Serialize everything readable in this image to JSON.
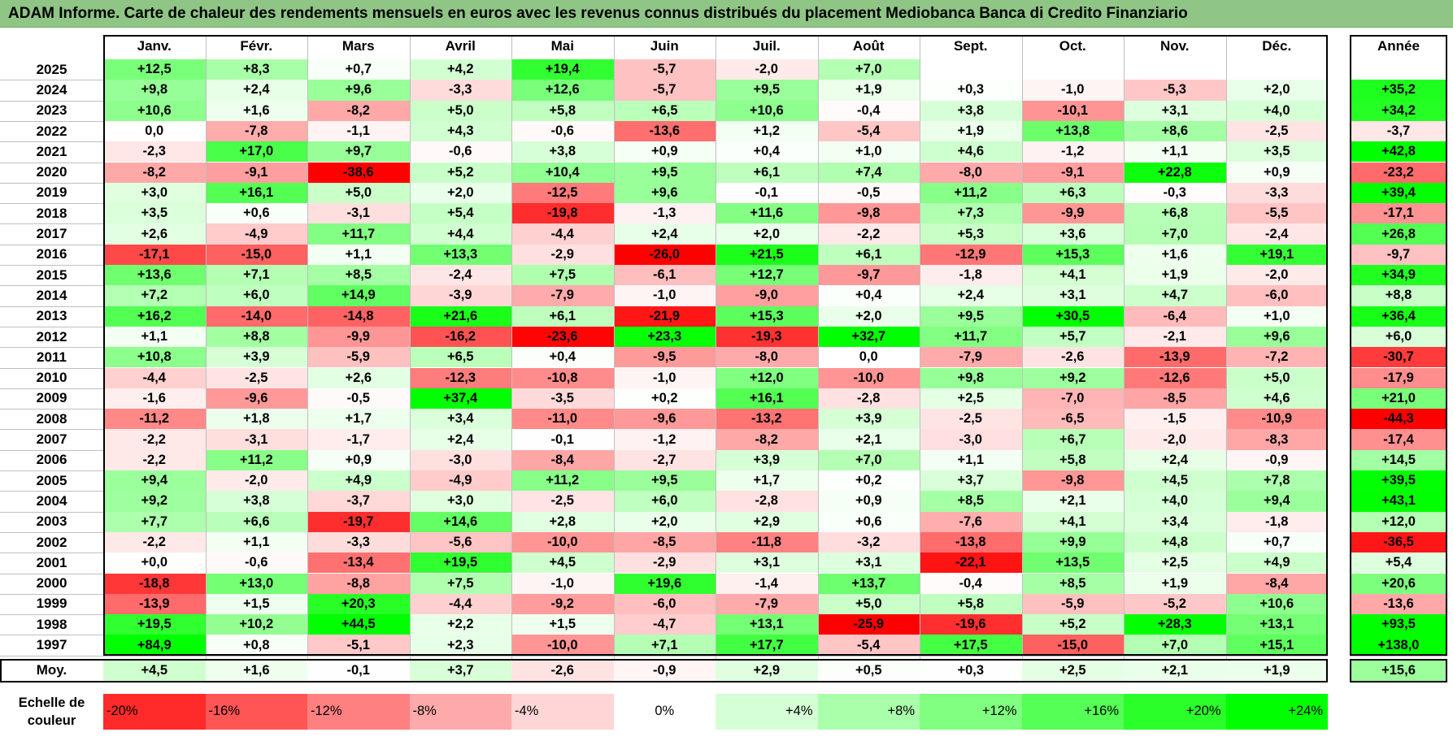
{
  "title": "ADAM Informe. Carte de chaleur des rendements mensuels en euros avec les revenus connus distribués du placement Mediobanca Banca di Credito Finanziario",
  "months": [
    "Janv.",
    "Févr.",
    "Mars",
    "Avril",
    "Mai",
    "Juin",
    "Juil.",
    "Août",
    "Sept.",
    "Oct.",
    "Nov.",
    "Déc."
  ],
  "year_header": "Année",
  "average_label": "Moy.",
  "scale_label": "Echelle de\ncouleur",
  "colors": {
    "title_bg": "#8fc585",
    "negative_max": "#ff0000",
    "neutral": "#ffffff",
    "positive_max": "#00ff00"
  },
  "chart_data": {
    "type": "heatmap",
    "title": "ADAM Informe. Carte de chaleur des rendements mensuels en euros avec les revenus connus distribués du placement Mediobanca Banca di Credito Finanziario",
    "columns": [
      "Janv.",
      "Févr.",
      "Mars",
      "Avril",
      "Mai",
      "Juin",
      "Juil.",
      "Août",
      "Sept.",
      "Oct.",
      "Nov.",
      "Déc.",
      "Année"
    ],
    "rows": [
      {
        "year": "2025",
        "values": [
          "+12,5",
          "+8,3",
          "+0,7",
          "+4,2",
          "+19,4",
          "-5,7",
          "-2,0",
          "+7,0",
          "",
          "",
          "",
          ""
        ],
        "annual": ""
      },
      {
        "year": "2024",
        "values": [
          "+9,8",
          "+2,4",
          "+9,6",
          "-3,3",
          "+12,6",
          "-5,7",
          "+9,5",
          "+1,9",
          "+0,3",
          "-1,0",
          "-5,3",
          "+2,0"
        ],
        "annual": "+35,2"
      },
      {
        "year": "2023",
        "values": [
          "+10,6",
          "+1,6",
          "-8,2",
          "+5,0",
          "+5,8",
          "+6,5",
          "+10,6",
          "-0,4",
          "+3,8",
          "-10,1",
          "+3,1",
          "+4,0"
        ],
        "annual": "+34,2"
      },
      {
        "year": "2022",
        "values": [
          "0,0",
          "-7,8",
          "-1,1",
          "+4,3",
          "-0,6",
          "-13,6",
          "+1,2",
          "-5,4",
          "+1,9",
          "+13,8",
          "+8,6",
          "-2,5"
        ],
        "annual": "-3,7"
      },
      {
        "year": "2021",
        "values": [
          "-2,3",
          "+17,0",
          "+9,7",
          "-0,6",
          "+3,8",
          "+0,9",
          "+0,4",
          "+1,0",
          "+4,6",
          "-1,2",
          "+1,1",
          "+3,5"
        ],
        "annual": "+42,8"
      },
      {
        "year": "2020",
        "values": [
          "-8,2",
          "-9,1",
          "-38,6",
          "+5,2",
          "+10,4",
          "+9,5",
          "+6,1",
          "+7,4",
          "-8,0",
          "-9,1",
          "+22,8",
          "+0,9"
        ],
        "annual": "-23,2"
      },
      {
        "year": "2019",
        "values": [
          "+3,0",
          "+16,1",
          "+5,0",
          "+2,0",
          "-12,5",
          "+9,6",
          "-0,1",
          "-0,5",
          "+11,2",
          "+6,3",
          "-0,3",
          "-3,3"
        ],
        "annual": "+39,4"
      },
      {
        "year": "2018",
        "values": [
          "+3,5",
          "+0,6",
          "-3,1",
          "+5,4",
          "-19,8",
          "-1,3",
          "+11,6",
          "-9,8",
          "+7,3",
          "-9,9",
          "+6,8",
          "-5,5"
        ],
        "annual": "-17,1"
      },
      {
        "year": "2017",
        "values": [
          "+2,6",
          "-4,9",
          "+11,7",
          "+4,4",
          "-4,4",
          "+2,4",
          "+2,0",
          "-2,2",
          "+5,3",
          "+3,6",
          "+7,0",
          "-2,4"
        ],
        "annual": "+26,8"
      },
      {
        "year": "2016",
        "values": [
          "-17,1",
          "-15,0",
          "+1,1",
          "+13,3",
          "-2,9",
          "-26,0",
          "+21,5",
          "+6,1",
          "-12,9",
          "+15,3",
          "+1,6",
          "+19,1"
        ],
        "annual": "-9,7"
      },
      {
        "year": "2015",
        "values": [
          "+13,6",
          "+7,1",
          "+8,5",
          "-2,4",
          "+7,5",
          "-6,1",
          "+12,7",
          "-9,7",
          "-1,8",
          "+4,1",
          "+1,9",
          "-2,0"
        ],
        "annual": "+34,9"
      },
      {
        "year": "2014",
        "values": [
          "+7,2",
          "+6,0",
          "+14,9",
          "-3,9",
          "-7,9",
          "-1,0",
          "-9,0",
          "+0,4",
          "+2,4",
          "+3,1",
          "+4,7",
          "-6,0"
        ],
        "annual": "+8,8"
      },
      {
        "year": "2013",
        "values": [
          "+16,2",
          "-14,0",
          "-14,8",
          "+21,6",
          "+6,1",
          "-21,9",
          "+15,3",
          "+2,0",
          "+9,5",
          "+30,5",
          "-6,4",
          "+1,0"
        ],
        "annual": "+36,4"
      },
      {
        "year": "2012",
        "values": [
          "+1,1",
          "+8,8",
          "-9,9",
          "-16,2",
          "-23,6",
          "+23,3",
          "-19,3",
          "+32,7",
          "+11,7",
          "+5,7",
          "-2,1",
          "+9,6"
        ],
        "annual": "+6,0"
      },
      {
        "year": "2011",
        "values": [
          "+10,8",
          "+3,9",
          "-5,9",
          "+6,5",
          "+0,4",
          "-9,5",
          "-8,0",
          "0,0",
          "-7,9",
          "-2,6",
          "-13,9",
          "-7,2"
        ],
        "annual": "-30,7"
      },
      {
        "year": "2010",
        "values": [
          "-4,4",
          "-2,5",
          "+2,6",
          "-12,3",
          "-10,8",
          "-1,0",
          "+12,0",
          "-10,0",
          "+9,8",
          "+9,2",
          "-12,6",
          "+5,0"
        ],
        "annual": "-17,9"
      },
      {
        "year": "2009",
        "values": [
          "-1,6",
          "-9,6",
          "-0,5",
          "+37,4",
          "-3,5",
          "+0,2",
          "+16,1",
          "-2,8",
          "+2,5",
          "-7,0",
          "-8,5",
          "+4,6"
        ],
        "annual": "+21,0"
      },
      {
        "year": "2008",
        "values": [
          "-11,2",
          "+1,8",
          "+1,7",
          "+3,4",
          "-11,0",
          "-9,6",
          "-13,2",
          "+3,9",
          "-2,5",
          "-6,5",
          "-1,5",
          "-10,9"
        ],
        "annual": "-44,3"
      },
      {
        "year": "2007",
        "values": [
          "-2,2",
          "-3,1",
          "-1,7",
          "+2,4",
          "-0,1",
          "-1,2",
          "-8,2",
          "+2,1",
          "-3,0",
          "+6,7",
          "-2,0",
          "-8,3"
        ],
        "annual": "-17,4"
      },
      {
        "year": "2006",
        "values": [
          "-2,2",
          "+11,2",
          "+0,9",
          "-3,0",
          "-8,4",
          "-2,7",
          "+3,9",
          "+7,0",
          "+1,1",
          "+5,8",
          "+2,4",
          "-0,9"
        ],
        "annual": "+14,5"
      },
      {
        "year": "2005",
        "values": [
          "+9,4",
          "-2,0",
          "+4,9",
          "-4,9",
          "+11,2",
          "+9,5",
          "+1,7",
          "+0,2",
          "+3,7",
          "-9,8",
          "+4,5",
          "+7,8"
        ],
        "annual": "+39,5"
      },
      {
        "year": "2004",
        "values": [
          "+9,2",
          "+3,8",
          "-3,7",
          "+3,0",
          "-2,5",
          "+6,0",
          "-2,8",
          "+0,9",
          "+8,5",
          "+2,1",
          "+4,0",
          "+9,4"
        ],
        "annual": "+43,1"
      },
      {
        "year": "2003",
        "values": [
          "+7,7",
          "+6,6",
          "-19,7",
          "+14,6",
          "+2,8",
          "+2,0",
          "+2,9",
          "+0,6",
          "-7,6",
          "+4,1",
          "+3,4",
          "-1,8"
        ],
        "annual": "+12,0"
      },
      {
        "year": "2002",
        "values": [
          "-2,2",
          "+1,1",
          "-3,3",
          "-5,6",
          "-10,0",
          "-8,5",
          "-11,8",
          "-3,2",
          "-13,8",
          "+9,9",
          "+4,8",
          "+0,7"
        ],
        "annual": "-36,5"
      },
      {
        "year": "2001",
        "values": [
          "+0,0",
          "-0,6",
          "-13,4",
          "+19,5",
          "+4,5",
          "-2,9",
          "+3,1",
          "+3,1",
          "-22,1",
          "+13,5",
          "+2,5",
          "+4,9"
        ],
        "annual": "+5,4"
      },
      {
        "year": "2000",
        "values": [
          "-18,8",
          "+13,0",
          "-8,8",
          "+7,5",
          "-1,0",
          "+19,6",
          "-1,4",
          "+13,7",
          "-0,4",
          "+8,5",
          "+1,9",
          "-8,4"
        ],
        "annual": "+20,6"
      },
      {
        "year": "1999",
        "values": [
          "-13,9",
          "+1,5",
          "+20,3",
          "-4,4",
          "-9,2",
          "-6,0",
          "-7,9",
          "+5,0",
          "+5,8",
          "-5,9",
          "-5,2",
          "+10,6"
        ],
        "annual": "-13,6"
      },
      {
        "year": "1998",
        "values": [
          "+19,5",
          "+10,2",
          "+44,5",
          "+2,2",
          "+1,5",
          "-4,7",
          "+13,1",
          "-25,9",
          "-19,6",
          "+5,2",
          "+28,3",
          "+13,1"
        ],
        "annual": "+93,5"
      },
      {
        "year": "1997",
        "values": [
          "+84,9",
          "+0,8",
          "-5,1",
          "+2,3",
          "-10,0",
          "+7,1",
          "+17,7",
          "-5,4",
          "+17,5",
          "-15,0",
          "+7,0",
          "+15,1"
        ],
        "annual": "+138,0"
      }
    ],
    "average": {
      "values": [
        "+4,5",
        "+1,6",
        "-0,1",
        "+3,7",
        "-2,6",
        "-0,9",
        "+2,9",
        "+0,5",
        "+0,3",
        "+2,5",
        "+2,1",
        "+1,9"
      ],
      "annual": "+15,6"
    },
    "scale": [
      "-20%",
      "-16%",
      "-12%",
      "-8%",
      "-4%",
      "0%",
      "+4%",
      "+8%",
      "+12%",
      "+16%",
      "+20%",
      "+24%"
    ]
  }
}
